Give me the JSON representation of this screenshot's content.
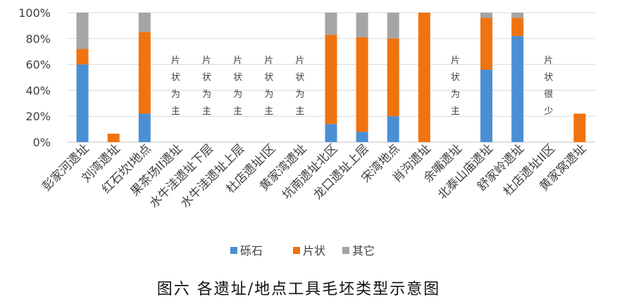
{
  "caption": "图六  各遗址/地点工具毛坯类型示意图",
  "chart_data": {
    "type": "bar",
    "stacked": true,
    "percent": true,
    "categories": [
      "彭家河遗址",
      "刘湾遗址",
      "红石坎I地点",
      "果茶场II遗址",
      "水牛洼遗址下层",
      "水牛洼遗址上层",
      "杜店遗址I区",
      "黄家湾遗址",
      "坑南遗址北区",
      "龙口遗址上层",
      "宋湾地点",
      "肖沟遗址",
      "余嘴遗址",
      "北泰山庙遗址",
      "舒家岭遗址",
      "杜店遗址II区",
      "黄家窝遗址"
    ],
    "series": [
      {
        "name": "砾石",
        "color": "#4a8fd3",
        "values": [
          60,
          0,
          22,
          0,
          0,
          0,
          0,
          0,
          14,
          8,
          20,
          0,
          0,
          56,
          82,
          0,
          0
        ]
      },
      {
        "name": "片状",
        "color": "#f0730f",
        "values": [
          12,
          6.5,
          63,
          0,
          0,
          0,
          0,
          0,
          69,
          73,
          60,
          100,
          0,
          40,
          14,
          0,
          22
        ]
      },
      {
        "name": "其它",
        "color": "#a5a5a5",
        "values": [
          28,
          0,
          15,
          0,
          0,
          0,
          0,
          0,
          17,
          19,
          20,
          0,
          0,
          4,
          4,
          0,
          0
        ]
      }
    ],
    "annotations": [
      {
        "category": 3,
        "text": "片状为主"
      },
      {
        "category": 4,
        "text": "片状为主"
      },
      {
        "category": 5,
        "text": "片状为主"
      },
      {
        "category": 6,
        "text": "片状为主"
      },
      {
        "category": 7,
        "text": "片状为主"
      },
      {
        "category": 12,
        "text": "片状为主"
      },
      {
        "category": 15,
        "text": "片状很少"
      }
    ],
    "yticks": [
      "0%",
      "20%",
      "40%",
      "60%",
      "80%",
      "100%"
    ],
    "ylim": [
      0,
      100
    ],
    "legend_position": "bottom",
    "grid": true
  }
}
